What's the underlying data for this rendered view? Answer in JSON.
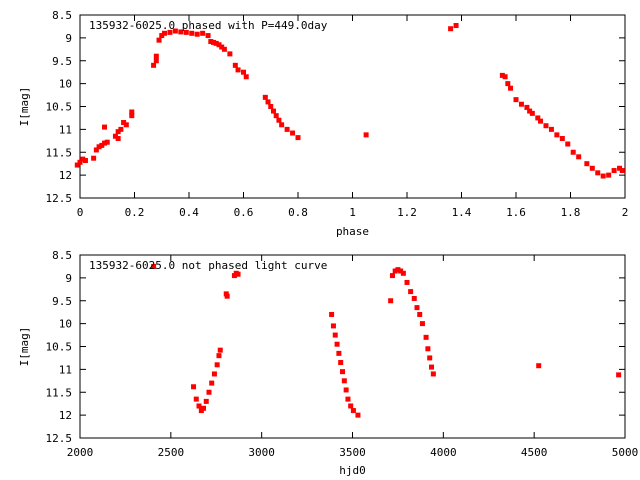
{
  "chart_data": [
    {
      "type": "scatter",
      "title": "135932-6025.0 phased with P=449.0day",
      "xlabel": "phase",
      "ylabel": "I[mag]",
      "xlim": [
        0,
        2
      ],
      "ylim": [
        12.5,
        8.5
      ],
      "y_inverted": true,
      "grid": false,
      "legend": "none",
      "marker_color": "#ff0000",
      "x_ticks": [
        "0",
        "0.2",
        "0.4",
        "0.6",
        "0.8",
        "1",
        "1.2",
        "1.4",
        "1.6",
        "1.8",
        "2"
      ],
      "x_tick_values": [
        0,
        0.2,
        0.4,
        0.6,
        0.8,
        1.0,
        1.2,
        1.4,
        1.6,
        1.8,
        2.0
      ],
      "y_ticks": [
        "8.5",
        "9",
        "9.5",
        "10",
        "10.5",
        "11",
        "11.5",
        "12",
        "12.5"
      ],
      "y_tick_values": [
        8.5,
        9,
        9.5,
        10,
        10.5,
        11,
        11.5,
        12,
        12.5
      ],
      "points": [
        [
          -0.01,
          11.78
        ],
        [
          0.0,
          11.72
        ],
        [
          0.01,
          11.65
        ],
        [
          0.02,
          11.68
        ],
        [
          0.05,
          11.63
        ],
        [
          0.06,
          11.45
        ],
        [
          0.07,
          11.38
        ],
        [
          0.08,
          11.35
        ],
        [
          0.09,
          11.3
        ],
        [
          0.1,
          11.28
        ],
        [
          0.09,
          10.95
        ],
        [
          0.13,
          11.15
        ],
        [
          0.14,
          11.05
        ],
        [
          0.15,
          11.0
        ],
        [
          0.14,
          11.2
        ],
        [
          0.16,
          10.85
        ],
        [
          0.17,
          10.9
        ],
        [
          0.19,
          10.62
        ],
        [
          0.19,
          10.7
        ],
        [
          0.27,
          9.6
        ],
        [
          0.28,
          9.5
        ],
        [
          0.28,
          9.4
        ],
        [
          0.29,
          9.05
        ],
        [
          0.3,
          8.95
        ],
        [
          0.31,
          8.9
        ],
        [
          0.33,
          8.88
        ],
        [
          0.35,
          8.85
        ],
        [
          0.37,
          8.87
        ],
        [
          0.39,
          8.88
        ],
        [
          0.41,
          8.9
        ],
        [
          0.43,
          8.92
        ],
        [
          0.45,
          8.9
        ],
        [
          0.47,
          8.95
        ],
        [
          0.48,
          9.08
        ],
        [
          0.49,
          9.1
        ],
        [
          0.5,
          9.12
        ],
        [
          0.51,
          9.15
        ],
        [
          0.52,
          9.2
        ],
        [
          0.53,
          9.25
        ],
        [
          0.55,
          9.35
        ],
        [
          0.57,
          9.6
        ],
        [
          0.58,
          9.7
        ],
        [
          0.6,
          9.75
        ],
        [
          0.61,
          9.85
        ],
        [
          0.68,
          10.3
        ],
        [
          0.69,
          10.4
        ],
        [
          0.7,
          10.5
        ],
        [
          0.71,
          10.6
        ],
        [
          0.72,
          10.7
        ],
        [
          0.73,
          10.8
        ],
        [
          0.74,
          10.9
        ],
        [
          0.76,
          11.0
        ],
        [
          0.78,
          11.08
        ],
        [
          0.8,
          11.18
        ],
        [
          1.05,
          11.12
        ],
        [
          1.36,
          8.8
        ],
        [
          1.38,
          8.73
        ],
        [
          1.55,
          9.82
        ],
        [
          1.56,
          9.85
        ],
        [
          1.57,
          10.0
        ],
        [
          1.58,
          10.1
        ],
        [
          1.6,
          10.35
        ],
        [
          1.62,
          10.45
        ],
        [
          1.64,
          10.52
        ],
        [
          1.65,
          10.6
        ],
        [
          1.66,
          10.65
        ],
        [
          1.68,
          10.75
        ],
        [
          1.69,
          10.82
        ],
        [
          1.71,
          10.92
        ],
        [
          1.73,
          11.0
        ],
        [
          1.75,
          11.12
        ],
        [
          1.77,
          11.2
        ],
        [
          1.79,
          11.32
        ],
        [
          1.81,
          11.5
        ],
        [
          1.83,
          11.6
        ],
        [
          1.86,
          11.75
        ],
        [
          1.88,
          11.85
        ],
        [
          1.9,
          11.95
        ],
        [
          1.92,
          12.02
        ],
        [
          1.94,
          12.0
        ],
        [
          1.96,
          11.9
        ],
        [
          1.98,
          11.85
        ],
        [
          1.99,
          11.9
        ]
      ]
    },
    {
      "type": "scatter",
      "title": "135932-6025.0 not phased light curve",
      "xlabel": "hjd0",
      "ylabel": "I[mag]",
      "xlim": [
        2000,
        5000
      ],
      "ylim": [
        12.5,
        8.5
      ],
      "y_inverted": true,
      "grid": false,
      "legend": "none",
      "marker_color": "#ff0000",
      "x_ticks": [
        "2000",
        "2500",
        "3000",
        "3500",
        "4000",
        "4500",
        "5000"
      ],
      "x_tick_values": [
        2000,
        2500,
        3000,
        3500,
        4000,
        4500,
        5000
      ],
      "y_ticks": [
        "8.5",
        "9",
        "9.5",
        "10",
        "10.5",
        "11",
        "11.5",
        "12",
        "12.5"
      ],
      "y_tick_values": [
        8.5,
        9,
        9.5,
        10,
        10.5,
        11,
        11.5,
        12,
        12.5
      ],
      "points": [
        [
          2405,
          8.75
        ],
        [
          2625,
          11.38
        ],
        [
          2640,
          11.65
        ],
        [
          2655,
          11.8
        ],
        [
          2668,
          11.9
        ],
        [
          2680,
          11.85
        ],
        [
          2695,
          11.7
        ],
        [
          2710,
          11.5
        ],
        [
          2725,
          11.3
        ],
        [
          2740,
          11.1
        ],
        [
          2755,
          10.9
        ],
        [
          2765,
          10.7
        ],
        [
          2772,
          10.58
        ],
        [
          2805,
          9.35
        ],
        [
          2810,
          9.4
        ],
        [
          2850,
          8.95
        ],
        [
          2860,
          8.9
        ],
        [
          2870,
          8.92
        ],
        [
          3385,
          9.8
        ],
        [
          3395,
          10.05
        ],
        [
          3405,
          10.25
        ],
        [
          3415,
          10.45
        ],
        [
          3425,
          10.65
        ],
        [
          3435,
          10.85
        ],
        [
          3445,
          11.05
        ],
        [
          3455,
          11.25
        ],
        [
          3465,
          11.45
        ],
        [
          3475,
          11.65
        ],
        [
          3490,
          11.8
        ],
        [
          3505,
          11.9
        ],
        [
          3530,
          12.0
        ],
        [
          3710,
          9.5
        ],
        [
          3720,
          8.95
        ],
        [
          3735,
          8.85
        ],
        [
          3750,
          8.82
        ],
        [
          3765,
          8.85
        ],
        [
          3780,
          8.9
        ],
        [
          3800,
          9.1
        ],
        [
          3820,
          9.3
        ],
        [
          3840,
          9.45
        ],
        [
          3855,
          9.65
        ],
        [
          3870,
          9.8
        ],
        [
          3885,
          10.0
        ],
        [
          3905,
          10.3
        ],
        [
          3915,
          10.55
        ],
        [
          3925,
          10.75
        ],
        [
          3935,
          10.95
        ],
        [
          3945,
          11.1
        ],
        [
          4525,
          10.92
        ],
        [
          4965,
          11.12
        ]
      ]
    }
  ]
}
